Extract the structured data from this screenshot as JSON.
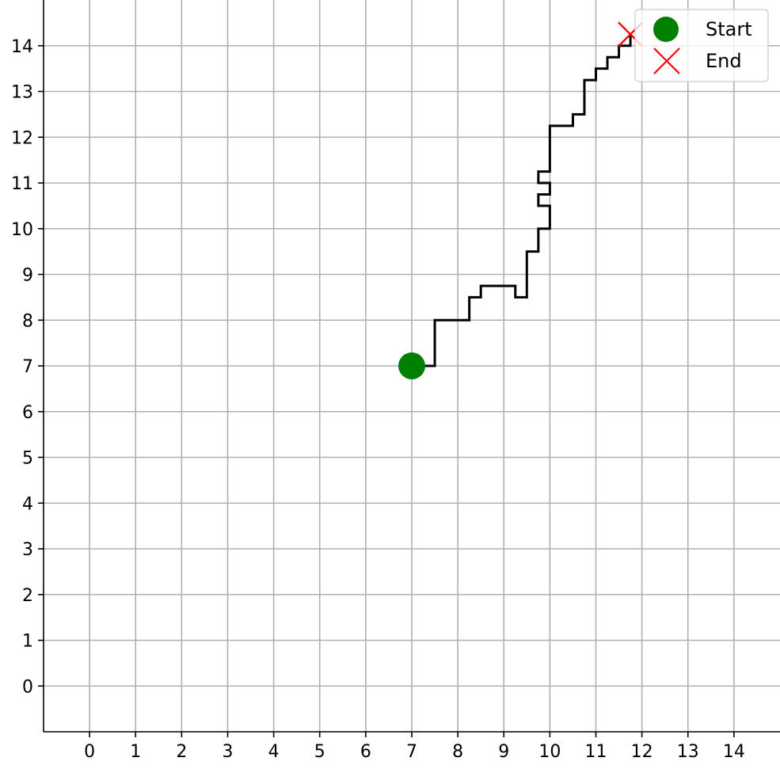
{
  "chart_data": {
    "type": "line",
    "title": "",
    "xlabel": "",
    "ylabel": "",
    "xlim": [
      -1,
      15
    ],
    "ylim": [
      -1,
      15
    ],
    "xticks": [
      0,
      1,
      2,
      3,
      4,
      5,
      6,
      7,
      8,
      9,
      10,
      11,
      12,
      13,
      14
    ],
    "yticks": [
      0,
      1,
      2,
      3,
      4,
      5,
      6,
      7,
      8,
      9,
      10,
      11,
      12,
      13,
      14
    ],
    "grid": true,
    "legend_position": "top-right",
    "path": {
      "color": "#000000",
      "points": [
        [
          7,
          7
        ],
        [
          7.5,
          7
        ],
        [
          7.5,
          8
        ],
        [
          8.25,
          8
        ],
        [
          8.25,
          8.5
        ],
        [
          8.5,
          8.5
        ],
        [
          8.5,
          8.75
        ],
        [
          9.25,
          8.75
        ],
        [
          9.25,
          8.5
        ],
        [
          9.5,
          8.5
        ],
        [
          9.5,
          9.5
        ],
        [
          9.75,
          9.5
        ],
        [
          9.75,
          10
        ],
        [
          10,
          10
        ],
        [
          10,
          10.5
        ],
        [
          9.75,
          10.5
        ],
        [
          9.75,
          10.75
        ],
        [
          10,
          10.75
        ],
        [
          10,
          11
        ],
        [
          9.75,
          11
        ],
        [
          9.75,
          11.25
        ],
        [
          10,
          11.25
        ],
        [
          10,
          12.25
        ],
        [
          10.5,
          12.25
        ],
        [
          10.5,
          12.5
        ],
        [
          10.75,
          12.5
        ],
        [
          10.75,
          13.25
        ],
        [
          11,
          13.25
        ],
        [
          11,
          13.5
        ],
        [
          11.25,
          13.5
        ],
        [
          11.25,
          13.75
        ],
        [
          11.5,
          13.75
        ],
        [
          11.5,
          14
        ],
        [
          11.75,
          14
        ],
        [
          11.75,
          14.25
        ],
        [
          11.75,
          14.25
        ]
      ]
    },
    "series": [
      {
        "name": "Start",
        "marker": "circle",
        "color": "#008000",
        "x": 7,
        "y": 7
      },
      {
        "name": "End",
        "marker": "x",
        "color": "#ff0000",
        "x": 11.75,
        "y": 14.25
      }
    ]
  }
}
